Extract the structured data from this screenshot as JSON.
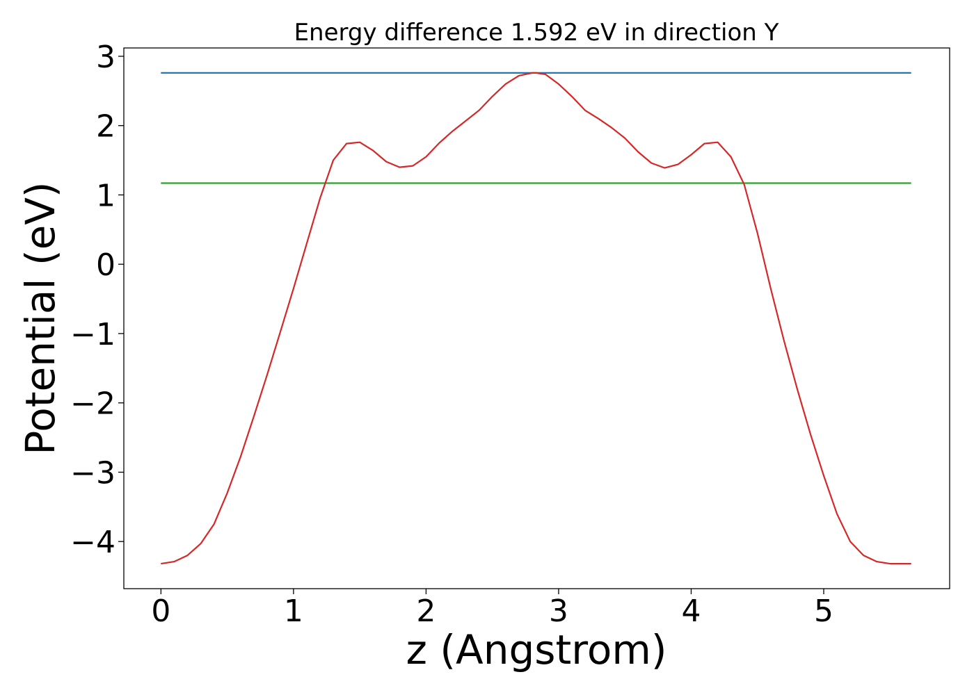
{
  "chart_data": {
    "type": "line",
    "title": "Energy difference 1.592 eV in direction Y",
    "xlabel": "z (Angstrom)",
    "ylabel": "Potential (eV)",
    "xlim": [
      -0.28,
      5.95
    ],
    "ylim": [
      -4.68,
      3.12
    ],
    "xticks": [
      0,
      1,
      2,
      3,
      4,
      5
    ],
    "xtick_labels": [
      "0",
      "1",
      "2",
      "3",
      "4",
      "5"
    ],
    "yticks": [
      -4,
      -3,
      -2,
      -1,
      0,
      1,
      2,
      3
    ],
    "ytick_labels": [
      "−4",
      "−3",
      "−2",
      "−1",
      "0",
      "1",
      "2",
      "3"
    ],
    "grid": false,
    "legend": "none",
    "series": [
      {
        "color": "#1f77b4",
        "x": [
          0,
          5.66
        ],
        "y": [
          2.76,
          2.76
        ]
      },
      {
        "color": "#2ca02c",
        "x": [
          0,
          5.66
        ],
        "y": [
          1.17,
          1.17
        ]
      },
      {
        "color": "#d62728",
        "x": [
          0,
          0.1,
          0.2,
          0.3,
          0.4,
          0.5,
          0.6,
          0.7,
          0.8,
          0.9,
          1.0,
          1.1,
          1.2,
          1.3,
          1.4,
          1.5,
          1.6,
          1.7,
          1.8,
          1.9,
          2.0,
          2.1,
          2.2,
          2.3,
          2.4,
          2.5,
          2.6,
          2.7,
          2.8,
          2.83,
          2.9,
          3.0,
          3.1,
          3.2,
          3.3,
          3.4,
          3.5,
          3.6,
          3.7,
          3.8,
          3.9,
          4.0,
          4.1,
          4.2,
          4.3,
          4.4,
          4.5,
          4.6,
          4.7,
          4.8,
          4.9,
          5.0,
          5.1,
          5.2,
          5.3,
          5.4,
          5.5,
          5.6,
          5.66
        ],
        "y": [
          -4.32,
          -4.29,
          -4.2,
          -4.03,
          -3.75,
          -3.3,
          -2.78,
          -2.2,
          -1.6,
          -0.98,
          -0.35,
          0.3,
          0.95,
          1.5,
          1.74,
          1.76,
          1.64,
          1.48,
          1.4,
          1.42,
          1.55,
          1.75,
          1.92,
          2.07,
          2.22,
          2.42,
          2.6,
          2.72,
          2.76,
          2.76,
          2.74,
          2.6,
          2.42,
          2.22,
          2.1,
          1.97,
          1.82,
          1.62,
          1.46,
          1.39,
          1.44,
          1.58,
          1.74,
          1.76,
          1.55,
          1.15,
          0.45,
          -0.35,
          -1.1,
          -1.8,
          -2.45,
          -3.05,
          -3.6,
          -4.0,
          -4.2,
          -4.29,
          -4.32,
          -4.32,
          -4.32
        ]
      }
    ]
  }
}
